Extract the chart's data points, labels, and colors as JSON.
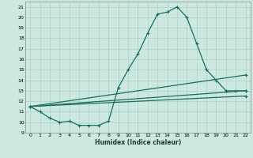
{
  "xlabel": "Humidex (Indice chaleur)",
  "background_color": "#cce8e0",
  "grid_color": "#aad4c8",
  "line_color": "#1a6e5a",
  "xlim": [
    -0.5,
    22.5
  ],
  "ylim": [
    9,
    21.5
  ],
  "xticks": [
    0,
    1,
    2,
    3,
    4,
    5,
    6,
    7,
    8,
    9,
    10,
    11,
    12,
    13,
    14,
    15,
    16,
    17,
    18,
    19,
    20,
    21,
    22
  ],
  "yticks": [
    9,
    10,
    11,
    12,
    13,
    14,
    15,
    16,
    17,
    18,
    19,
    20,
    21
  ],
  "line1_x": [
    0,
    1,
    2,
    3,
    4,
    5,
    6,
    7,
    8,
    9,
    10,
    11,
    12,
    13,
    14,
    15,
    16,
    17,
    18,
    19,
    20,
    21,
    22
  ],
  "line1_y": [
    11.5,
    11.0,
    10.4,
    10.0,
    10.1,
    9.7,
    9.7,
    9.7,
    10.1,
    13.3,
    15.0,
    16.5,
    18.5,
    20.3,
    20.5,
    21.0,
    20.0,
    17.5,
    15.0,
    14.0,
    13.0,
    13.0,
    13.0
  ],
  "line2_x": [
    0,
    22
  ],
  "line2_y": [
    11.5,
    14.5
  ],
  "line3_x": [
    0,
    22
  ],
  "line3_y": [
    11.5,
    13.0
  ],
  "line4_x": [
    0,
    22
  ],
  "line4_y": [
    11.5,
    12.5
  ]
}
